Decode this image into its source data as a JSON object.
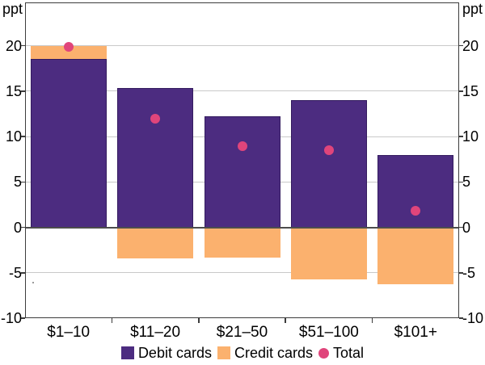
{
  "axis": {
    "unit_left": "ppt",
    "unit_right": "ppt",
    "y_ticks": [
      20,
      15,
      10,
      5,
      0,
      -5,
      -10
    ]
  },
  "chart_data": {
    "type": "bar",
    "stacked": true,
    "categories": [
      "$1–10",
      "$11–20",
      "$21–50",
      "$51–100",
      "$101+"
    ],
    "series": [
      {
        "name": "Debit cards",
        "type": "bar",
        "color": "#4c2c80",
        "values": [
          18.5,
          15.3,
          12.2,
          14.0,
          8.0
        ]
      },
      {
        "name": "Credit cards",
        "type": "bar",
        "color": "#fbb16e",
        "values": [
          1.5,
          -3.4,
          -3.3,
          -5.7,
          -6.3
        ]
      },
      {
        "name": "Total",
        "type": "scatter",
        "color": "#e0457b",
        "values": [
          19.9,
          12.0,
          8.9,
          8.5,
          1.8
        ]
      }
    ],
    "ylabel": "ppt",
    "ylim": [
      -10,
      24.8
    ],
    "grid": true,
    "gridline_values": [
      20,
      15,
      10,
      5,
      -5
    ],
    "legend_position": "bottom"
  },
  "legend": {
    "items": [
      {
        "label": "Debit cards",
        "shape": "square",
        "color": "#4c2c80"
      },
      {
        "label": "Credit cards",
        "shape": "square",
        "color": "#fbb16e"
      },
      {
        "label": "Total",
        "shape": "circle",
        "color": "#e0457b"
      }
    ]
  },
  "colors": {
    "gridline": "#c9c9c9",
    "zero_line": "#4d4d4d",
    "axis_frame": "#3c3c3c"
  }
}
